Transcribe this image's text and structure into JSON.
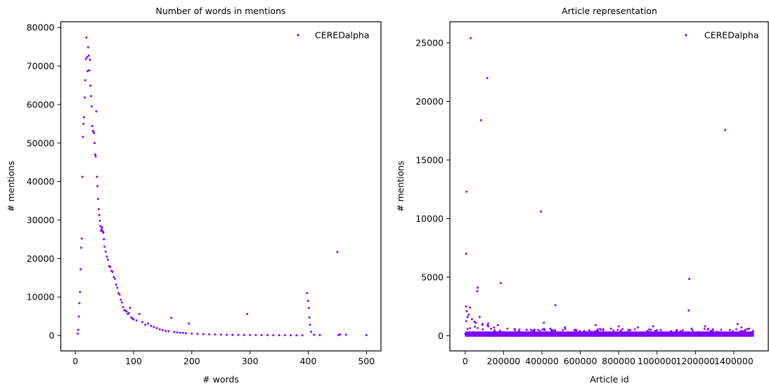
{
  "figure": {
    "background": "#ffffff"
  },
  "chart_data": [
    {
      "type": "scatter",
      "title": "Number of words in mentions",
      "xlabel": "# words",
      "ylabel": "# mentions",
      "xlim": [
        -25,
        525
      ],
      "ylim": [
        -4000,
        81500
      ],
      "xticks": [
        0,
        100,
        200,
        300,
        400,
        500
      ],
      "yticks": [
        0,
        10000,
        20000,
        30000,
        40000,
        50000,
        60000,
        70000,
        80000
      ],
      "grid": false,
      "legend": {
        "position": "top-right",
        "entries": [
          "CEREDalpha"
        ]
      },
      "series": [
        {
          "name": "CEREDalpha",
          "color": "#7f00ff",
          "x": [
            4,
            5,
            6,
            7,
            8,
            9,
            10,
            11,
            12,
            13,
            14,
            15,
            16,
            17,
            18,
            19,
            20,
            21,
            22,
            23,
            24,
            25,
            26,
            27,
            28,
            29,
            30,
            31,
            32,
            33,
            34,
            35,
            36,
            37,
            38,
            39,
            40,
            41,
            42,
            43,
            44,
            45,
            46,
            47,
            48,
            49,
            50,
            52,
            54,
            56,
            58,
            60,
            62,
            64,
            66,
            68,
            70,
            72,
            74,
            76,
            78,
            80,
            82,
            84,
            86,
            88,
            90,
            92,
            94,
            96,
            98,
            100,
            105,
            110,
            115,
            120,
            125,
            130,
            135,
            140,
            145,
            150,
            155,
            160,
            165,
            170,
            175,
            180,
            185,
            190,
            195,
            200,
            210,
            220,
            230,
            240,
            250,
            260,
            270,
            280,
            290,
            295,
            300,
            310,
            320,
            330,
            340,
            350,
            360,
            370,
            380,
            390,
            398,
            400,
            401,
            402,
            403,
            405,
            410,
            420,
            450,
            452,
            455,
            465,
            500
          ],
          "y": [
            500,
            1500,
            4900,
            8400,
            11300,
            17200,
            22800,
            25200,
            41200,
            51600,
            55000,
            56700,
            61800,
            66300,
            71800,
            77400,
            72300,
            68700,
            74900,
            72700,
            68900,
            71600,
            64900,
            62200,
            59500,
            54400,
            53100,
            53000,
            52600,
            50000,
            47000,
            46500,
            58200,
            41200,
            38800,
            35500,
            32800,
            31300,
            29800,
            28400,
            27200,
            27600,
            28100,
            27100,
            26700,
            25000,
            23100,
            21800,
            20500,
            19700,
            18000,
            17800,
            16800,
            16500,
            15200,
            14700,
            13200,
            12400,
            11000,
            10600,
            9300,
            8600,
            7400,
            6600,
            6500,
            6200,
            5600,
            5800,
            7200,
            4700,
            4400,
            4200,
            3900,
            5600,
            3500,
            2800,
            3100,
            2500,
            2200,
            1900,
            1600,
            1400,
            1200,
            1100,
            4600,
            900,
            800,
            700,
            700,
            600,
            3100,
            500,
            400,
            350,
            300,
            250,
            220,
            200,
            180,
            160,
            150,
            5600,
            130,
            120,
            110,
            100,
            90,
            80,
            70,
            60,
            50,
            40,
            11000,
            9000,
            7200,
            4700,
            2800,
            1000,
            200,
            100,
            21700,
            100,
            300,
            200,
            100
          ]
        }
      ]
    },
    {
      "type": "scatter",
      "title": "Article representation",
      "xlabel": "Article id",
      "ylabel": "# mentions",
      "xlim": [
        -80000,
        1580000
      ],
      "ylim": [
        -1300,
        26800
      ],
      "xticks": [
        0,
        200000,
        400000,
        600000,
        800000,
        1000000,
        1200000,
        1400000
      ],
      "yticks": [
        0,
        5000,
        10000,
        15000,
        20000,
        25000
      ],
      "grid": false,
      "legend": {
        "position": "top-right",
        "entries": [
          "CEREDalpha"
        ]
      },
      "series": [
        {
          "name": "CEREDalpha",
          "color": "#7f00ff",
          "x_range": [
            0,
            1505000
          ],
          "baseline_band_max": 600,
          "x": [
            28000,
            115000,
            7000,
            1355000,
            82000,
            395000,
            5000,
            65000,
            63000,
            185000,
            1168000,
            470000,
            1165000,
            5000,
            8000,
            12000,
            18000,
            25000,
            35000,
            48000,
            55000,
            75000,
            90000,
            120000,
            150000,
            170000,
            220000,
            260000,
            280000,
            320000,
            380000,
            410000,
            450000,
            520000,
            580000,
            620000,
            680000,
            720000,
            760000,
            800000,
            850000,
            900000,
            950000,
            980000,
            1020000,
            1100000,
            1180000,
            1250000,
            1290000,
            1330000,
            1380000,
            1420000,
            1440000,
            1460000,
            1480000,
            1500000
          ],
          "y": [
            25400,
            22000,
            12300,
            17550,
            18400,
            10600,
            7000,
            4100,
            3800,
            4500,
            4850,
            2600,
            2150,
            2500,
            2100,
            1600,
            1800,
            2400,
            1400,
            1200,
            1100,
            1600,
            1000,
            800,
            700,
            900,
            600,
            500,
            400,
            500,
            500,
            1100,
            400,
            700,
            450,
            400,
            900,
            500,
            600,
            800,
            500,
            700,
            400,
            800,
            300,
            400,
            600,
            800,
            400,
            300,
            500,
            1000,
            700,
            500,
            600,
            400
          ]
        }
      ]
    }
  ]
}
